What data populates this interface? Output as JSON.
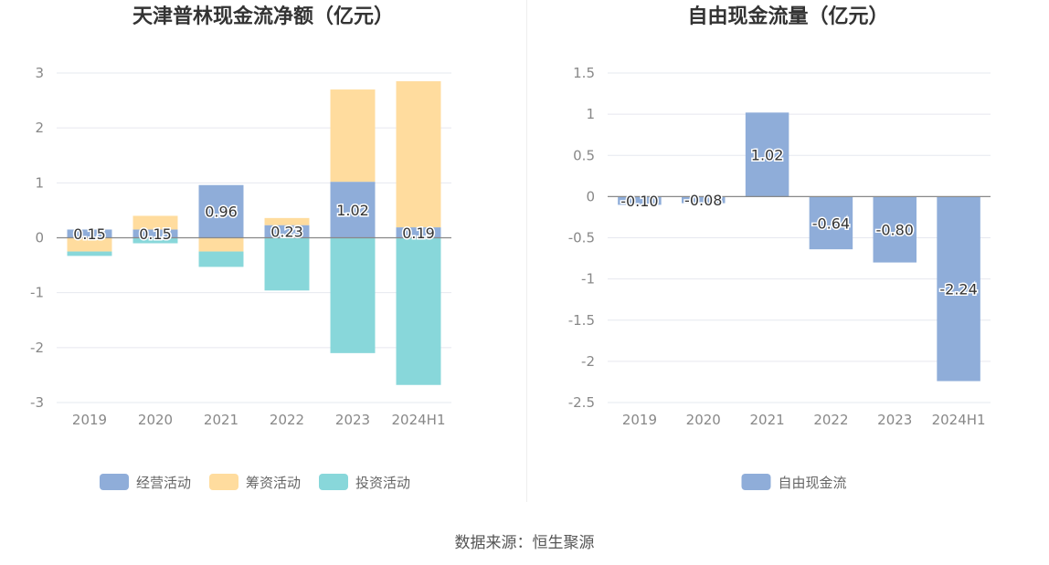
{
  "charts": {
    "left": {
      "title": "天津普林现金流净额（亿元）"
    },
    "right": {
      "title": "自由现金流量（亿元）"
    }
  },
  "source_text": "数据来源：恒生聚源",
  "chart_data": [
    {
      "type": "bar",
      "stacked": true,
      "title": "天津普林现金流净额（亿元）",
      "categories": [
        "2019",
        "2020",
        "2021",
        "2022",
        "2023",
        "2024H1"
      ],
      "yticks": [
        3,
        2,
        1,
        0,
        -1,
        -2,
        -3
      ],
      "ylim": [
        -3,
        3
      ],
      "grid": true,
      "legend_position": "bottom",
      "series": [
        {
          "name": "经营活动",
          "color": "#8fadd9",
          "values": [
            0.15,
            0.15,
            0.96,
            0.23,
            1.02,
            0.19
          ],
          "labels": [
            "0.15",
            "0.15",
            "0.96",
            "0.23",
            "1.02",
            "0.19"
          ]
        },
        {
          "name": "筹资活动",
          "color": "#ffdc9e",
          "values": [
            -0.25,
            0.25,
            -0.25,
            0.13,
            1.68,
            2.66
          ]
        },
        {
          "name": "投资活动",
          "color": "#88d7da",
          "values": [
            -0.08,
            -0.1,
            -0.28,
            -0.96,
            -2.1,
            -2.68
          ]
        }
      ]
    },
    {
      "type": "bar",
      "title": "自由现金流量（亿元）",
      "categories": [
        "2019",
        "2020",
        "2021",
        "2022",
        "2023",
        "2024H1"
      ],
      "yticks": [
        1.5,
        1,
        0.5,
        0,
        -0.5,
        -1,
        -1.5,
        -2,
        -2.5
      ],
      "ylim": [
        -2.5,
        1.5
      ],
      "grid": true,
      "legend_position": "bottom",
      "series": [
        {
          "name": "自由现金流",
          "color": "#8fadd9",
          "values": [
            -0.1,
            -0.08,
            1.02,
            -0.64,
            -0.8,
            -2.24
          ],
          "labels": [
            "-0.10",
            "-0.08",
            "1.02",
            "-0.64",
            "-0.80",
            "-2.24"
          ]
        }
      ]
    }
  ]
}
